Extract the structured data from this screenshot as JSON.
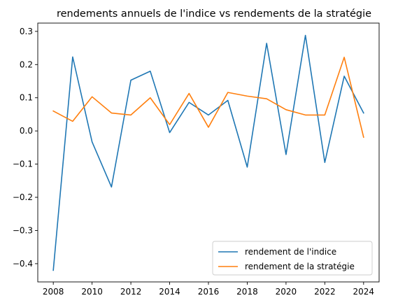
{
  "chart_data": {
    "type": "line",
    "title": "rendements annuels de l'indice vs rendements de la stratégie",
    "xlabel": "",
    "ylabel": "",
    "x": [
      2008,
      2009,
      2010,
      2011,
      2012,
      2013,
      2014,
      2015,
      2016,
      2017,
      2018,
      2019,
      2020,
      2021,
      2022,
      2023,
      2024
    ],
    "xlim": [
      2007.2,
      2024.8
    ],
    "ylim": [
      -0.455,
      0.325
    ],
    "x_ticks": [
      "2008",
      "2010",
      "2012",
      "2014",
      "2016",
      "2018",
      "2020",
      "2022",
      "2024"
    ],
    "y_ticks": [
      "−0.4",
      "−0.3",
      "−0.2",
      "−0.1",
      "0.0",
      "0.1",
      "0.2",
      "0.3"
    ],
    "x_tick_values": [
      2008,
      2010,
      2012,
      2014,
      2016,
      2018,
      2020,
      2022,
      2024
    ],
    "y_tick_values": [
      -0.4,
      -0.3,
      -0.2,
      -0.1,
      0.0,
      0.1,
      0.2,
      0.3
    ],
    "grid": false,
    "legend_position": "bottom-right",
    "series": [
      {
        "name": "rendement de l'indice",
        "color": "#1f77b4",
        "values": [
          -0.42,
          0.223,
          -0.033,
          -0.169,
          0.153,
          0.18,
          -0.005,
          0.086,
          0.048,
          0.092,
          -0.109,
          0.264,
          -0.071,
          0.288,
          -0.095,
          0.165,
          0.054
        ]
      },
      {
        "name": "rendement de la stratégie",
        "color": "#ff7f0e",
        "values": [
          0.06,
          0.029,
          0.103,
          0.054,
          0.048,
          0.1,
          0.019,
          0.113,
          0.011,
          0.116,
          0.105,
          0.097,
          0.064,
          0.048,
          0.048,
          0.222,
          -0.019
        ]
      }
    ]
  }
}
